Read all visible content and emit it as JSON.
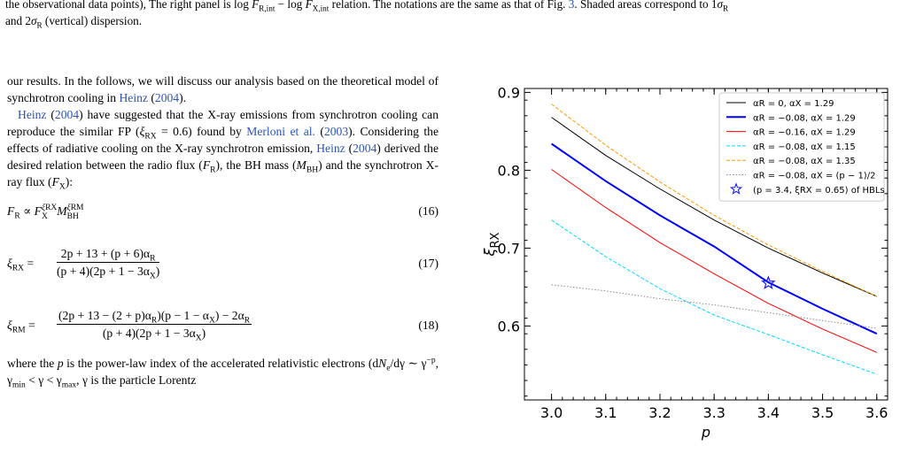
{
  "caption": {
    "line1_a": "the observational data points), The right panel is log ",
    "line1_b": "F",
    "line1_c": "R,int",
    "line1_d": " − log ",
    "line1_e": "F",
    "line1_f": "X,int",
    "line1_g": " relation. The notations are the same as that of Fig. ",
    "line1_link": "3",
    "line1_h": ". Shaded areas correspond to 1",
    "line1_i": "σ",
    "line1_j": "R",
    "line2_a": "and 2",
    "line2_b": "σ",
    "line2_c": "R",
    "line2_d": " (vertical) dispersion."
  },
  "text": {
    "p1_a": "our results. In the follows, we will discuss our analysis based on the theoretical model of synchrotron cooling in ",
    "p1_link1": "Heinz",
    "p1_b": " (",
    "p1_link2": "2004",
    "p1_c": ").",
    "p2_link1": "Heinz",
    "p2_a": " (",
    "p2_link2": "2004",
    "p2_b": ") have suggested that the X-ray emissions from synchrotron cooling can reproduce the similar FP (",
    "p2_xi": "ξ",
    "p2_sub": "RX",
    "p2_c": " = 0.6) found by ",
    "p2_link3": "Merloni et al.",
    "p2_d": " (",
    "p2_link4": "2003",
    "p2_e": "). Considering the effects of radiative cooling on the X-ray synchrotron emission, ",
    "p2_link5": "Heinz",
    "p2_f": " (",
    "p2_link6": "2004",
    "p2_g": ") derived the desired relation between the radio flux (",
    "p2_h": "F",
    "p2_i": "R",
    "p2_j": "), the BH mass (",
    "p2_k": "M",
    "p2_l": "BH",
    "p2_m": ") and the synchrotron X-ray flux (",
    "p2_n": "F",
    "p2_o": "X",
    "p2_p": "):",
    "eq16_num": "(16)",
    "eq17_num": "(17)",
    "eq18_num": "(18)",
    "eq17_lhs": "ξ",
    "eq17_lhs_sub": "RX",
    "eq17_numerator": "2p + 13 + (p + 6)α",
    "eq17_den": "(p + 4)(2p + 1 − 3α",
    "eq18_lhs": "ξ",
    "eq18_lhs_sub": "RM",
    "eq18_numerator_a": "(2p + 13 − (2 + p)α",
    "eq18_numerator_b": ")(p − 1 − α",
    "eq18_numerator_c": ") − 2α",
    "eq18_den": "(p + 4)(2p + 1 − 3α",
    "sub_R": "R",
    "sub_X": "X",
    "close_paren": ")",
    "eq_equals": " = ",
    "eq16_F": "F",
    "eq16_R": "R",
    "eq16_prop": " ∝ ",
    "eq16_FX": "F",
    "eq16_X": "X",
    "eq16_exp1": "ξ",
    "eq16_exp1_sub": "RX",
    "eq16_M": "M",
    "eq16_BH": "BH",
    "eq16_exp2": "ξ",
    "eq16_exp2_sub": "RM",
    "p3_a": "where the ",
    "p3_p": "p",
    "p3_b": " is the power-law index of the accelerated relativistic electrons (d",
    "p3_N": "N",
    "p3_e": "e",
    "p3_c": "/dγ ∼ γ",
    "p3_sup": "−p",
    "p3_d": ", γ",
    "p3_min": "min",
    "p3_f": " < γ < γ",
    "p3_max": "max",
    "p3_g": ", γ is the particle Lorentz"
  },
  "chart_data": {
    "type": "line",
    "xlabel": "p",
    "ylabel": "ξRX",
    "xlim": [
      2.95,
      3.62
    ],
    "ylim": [
      0.505,
      0.905
    ],
    "xticks": [
      "3.0",
      "3.1",
      "3.2",
      "3.3",
      "3.4",
      "3.5",
      "3.6"
    ],
    "yticks": [
      "0.6",
      "0.7",
      "0.8",
      "0.9"
    ],
    "legend_position": "top-right",
    "series": [
      {
        "name": "αR = 0, αX = 1.29",
        "color": "#000000",
        "dash": "solid",
        "width": 1,
        "x": [
          3.0,
          3.1,
          3.2,
          3.3,
          3.4,
          3.5,
          3.6
        ],
        "y": [
          0.868,
          0.819,
          0.776,
          0.736,
          0.7,
          0.668,
          0.638
        ]
      },
      {
        "name": "αR = −0.08, αX = 1.29",
        "color": "#0000ff",
        "dash": "solid",
        "width": 2,
        "x": [
          3.0,
          3.1,
          3.2,
          3.3,
          3.4,
          3.5,
          3.6
        ],
        "y": [
          0.834,
          0.786,
          0.742,
          0.702,
          0.656,
          0.622,
          0.59
        ]
      },
      {
        "name": "αR = −0.16, αX = 1.29",
        "color": "#ff0000",
        "dash": "solid",
        "width": 1,
        "x": [
          3.0,
          3.1,
          3.2,
          3.3,
          3.4,
          3.5,
          3.6
        ],
        "y": [
          0.801,
          0.752,
          0.707,
          0.667,
          0.629,
          0.596,
          0.566
        ]
      },
      {
        "name": "αR = −0.08, αX = 1.15",
        "color": "#00d8ff",
        "dash": "dashed",
        "width": 1,
        "x": [
          3.0,
          3.1,
          3.2,
          3.3,
          3.4,
          3.5,
          3.6
        ],
        "y": [
          0.736,
          0.689,
          0.648,
          0.614,
          0.589,
          0.563,
          0.538
        ]
      },
      {
        "name": "αR = −0.08, αX = 1.35",
        "color": "#ff9900",
        "dash": "dashed",
        "width": 1,
        "x": [
          3.0,
          3.1,
          3.2,
          3.3,
          3.4,
          3.5,
          3.6
        ],
        "y": [
          0.885,
          0.832,
          0.785,
          0.742,
          0.704,
          0.67,
          0.638
        ]
      },
      {
        "name": "αR = −0.08, αX = (p − 1)/2",
        "color": "#888888",
        "dash": "dotted",
        "width": 1,
        "x": [
          3.0,
          3.1,
          3.2,
          3.3,
          3.4,
          3.5,
          3.6
        ],
        "y": [
          0.653,
          0.645,
          0.635,
          0.627,
          0.617,
          0.607,
          0.597
        ]
      }
    ],
    "points": [
      {
        "name": "(p = 3.4, ξRX = 0.65) of HBLs",
        "x": 3.4,
        "y": 0.655,
        "marker": "star",
        "color": "#1a1aff"
      }
    ]
  }
}
